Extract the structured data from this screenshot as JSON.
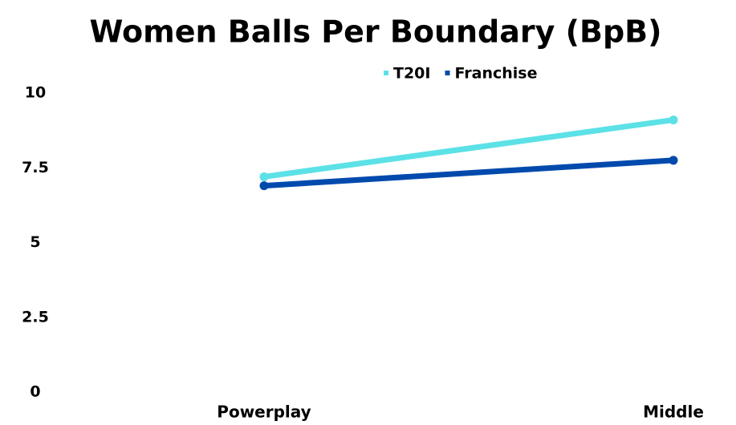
{
  "chart_data": {
    "type": "line",
    "title": "Women Balls Per Boundary (BpB)",
    "categories": [
      "Powerplay",
      "Middle"
    ],
    "series": [
      {
        "name": "T20I",
        "color": "#5ce1e6",
        "values": [
          7.2,
          9.1
        ]
      },
      {
        "name": "Franchise",
        "color": "#004aad",
        "values": [
          6.9,
          7.75
        ]
      }
    ],
    "ylim": [
      0,
      10
    ],
    "yticks": [
      0,
      2.5,
      5,
      7.5,
      10
    ],
    "grid": false,
    "legend": "top"
  }
}
